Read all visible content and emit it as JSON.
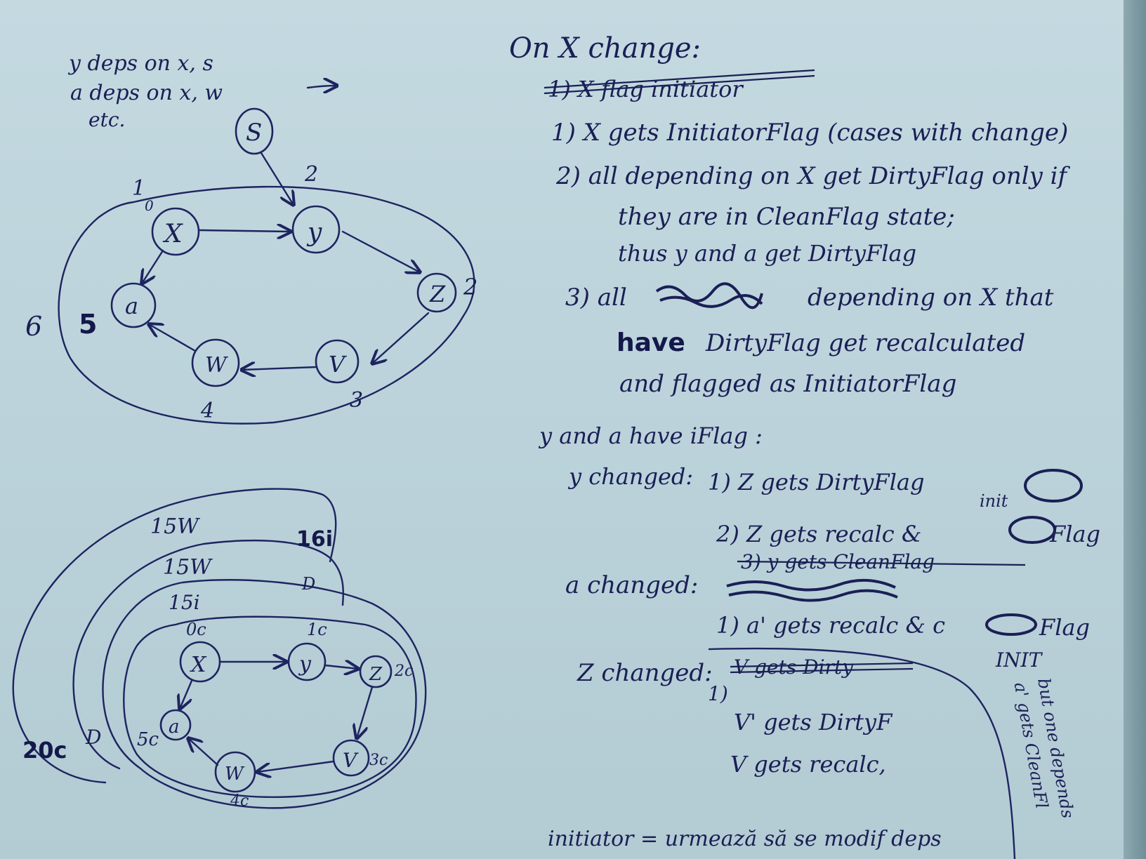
{
  "top_left_note": [
    "y deps on x, s",
    "a deps on x, w",
    "etc."
  ],
  "arrow_glyph": "→",
  "graph1": {
    "nodes": {
      "s": "S",
      "x": "X",
      "y": "y",
      "z": "Z",
      "v": "V",
      "w": "W",
      "a": "a"
    },
    "labels": {
      "x": "1",
      "x_sub": "0",
      "y": "2",
      "z": "2",
      "v": "3",
      "w": "4",
      "a": "5",
      "outer": "6"
    }
  },
  "graph2": {
    "nodes": {
      "x": "X",
      "y": "y",
      "z": "Z",
      "v": "V",
      "w": "W",
      "a": "a"
    },
    "labels": {
      "x": "0c",
      "y": "1c",
      "z": "2c",
      "v": "3c",
      "w": "4c",
      "a": "5c"
    },
    "layers": [
      "15i",
      "15W",
      "15W",
      "16i"
    ],
    "side": [
      "20c",
      "D",
      "D"
    ]
  },
  "notes": {
    "heading": "On X change:",
    "struck": "1) X flag initiator",
    "step1": "1) X gets InitiatorFlag (cases with change)",
    "step2": [
      "2) all depending on X get DirtyFlag only if",
      "they are in CleanFlag state;",
      "thus  y and a get DirtyFlag"
    ],
    "step3": [
      "3) all",
      "depending on X that",
      "have",
      "DirtyFlag get recalculated",
      "and flagged as InitiatorFlag"
    ],
    "ya_line": "y and a have iFlag :",
    "y_changed": "y changed:",
    "y_step1": "1) Z gets DirtyFlag",
    "y_step1_right": "init",
    "y_step2": "2) Z gets recalc  & ",
    "y_step2_right": "Flag",
    "y_step3": "3) y gets CleanFlag",
    "a_changed": "a changed:",
    "a_step1": "1) a' gets recalc  & c",
    "a_step1_right": "Flag",
    "a_init": "INIT",
    "z_changed": "Z changed:",
    "z_struck": "V gets Dirty",
    "z_step1": "1)",
    "z_step1b": "V' gets DirtyF",
    "z_step2": "V gets recalc,",
    "side_note": [
      "but one depends",
      "a' gets CleanFl"
    ],
    "bottom": "initiator = urmează să se modif deps"
  }
}
